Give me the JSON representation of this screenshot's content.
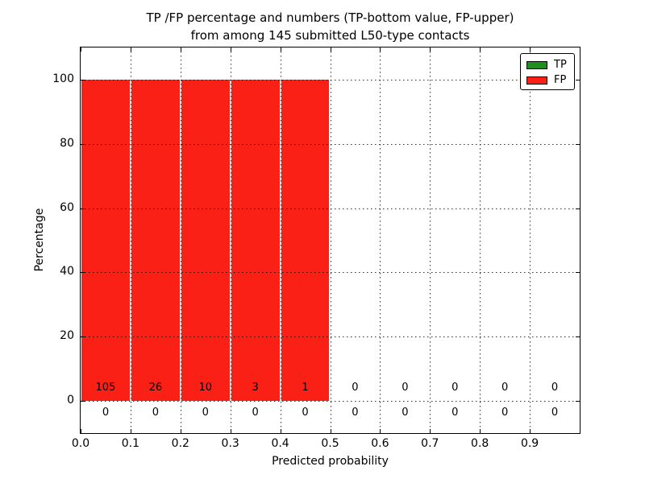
{
  "title": {
    "line1": "TP /FP percentage and numbers (TP-bottom value, FP-upper)",
    "line2": "from among 145 submitted L50-type contacts"
  },
  "axes": {
    "x_label": "Predicted probability",
    "y_label": "Percentage",
    "x_ticks": [
      "0.0",
      "0.1",
      "0.2",
      "0.3",
      "0.4",
      "0.5",
      "0.6",
      "0.7",
      "0.8",
      "0.9"
    ],
    "x_tick_values": [
      0.0,
      0.1,
      0.2,
      0.3,
      0.4,
      0.5,
      0.6,
      0.7,
      0.8,
      0.9
    ],
    "y_ticks": [
      "0",
      "20",
      "40",
      "60",
      "80",
      "100"
    ],
    "y_tick_values": [
      0,
      20,
      40,
      60,
      80,
      100
    ],
    "grid_x_values": [
      0.1,
      0.2,
      0.3,
      0.4,
      0.5,
      0.6,
      0.7,
      0.8,
      0.9
    ],
    "grid_y_values": [
      0,
      20,
      40,
      60,
      80,
      100
    ],
    "grid_style": "dotted"
  },
  "legend": {
    "position": "upper-right",
    "items": [
      {
        "label": "TP",
        "color": "#1e8f1e"
      },
      {
        "label": "FP",
        "color": "#fb2015"
      }
    ]
  },
  "chart_data": {
    "type": "bar",
    "title": "TP /FP percentage and numbers (TP-bottom value, FP-upper) from among 145 submitted L50-type contacts",
    "xlabel": "Predicted probability",
    "ylabel": "Percentage",
    "total_submitted": 145,
    "contact_type": "L50",
    "bin_edges": [
      0.0,
      0.1,
      0.2,
      0.3,
      0.4,
      0.5,
      0.6,
      0.7,
      0.8,
      0.9,
      1.0
    ],
    "bin_centers": [
      0.05,
      0.15,
      0.25,
      0.35,
      0.45,
      0.55,
      0.65,
      0.75,
      0.85,
      0.95
    ],
    "series": [
      {
        "name": "TP",
        "color": "#1e8f1e",
        "percent": [
          0,
          0,
          0,
          0,
          0,
          0,
          0,
          0,
          0,
          0
        ],
        "counts": [
          0,
          0,
          0,
          0,
          0,
          0,
          0,
          0,
          0,
          0
        ],
        "count_label_y": -3.7
      },
      {
        "name": "FP",
        "color": "#fb2015",
        "percent": [
          100,
          100,
          100,
          100,
          100,
          0,
          0,
          0,
          0,
          0
        ],
        "counts": [
          105,
          26,
          10,
          3,
          1,
          0,
          0,
          0,
          0,
          0
        ],
        "count_label_y": 4.0
      }
    ],
    "xlim": [
      0.0,
      1.0
    ],
    "ylim": [
      -10,
      110
    ],
    "grid": true,
    "legend_position": "upper right"
  }
}
